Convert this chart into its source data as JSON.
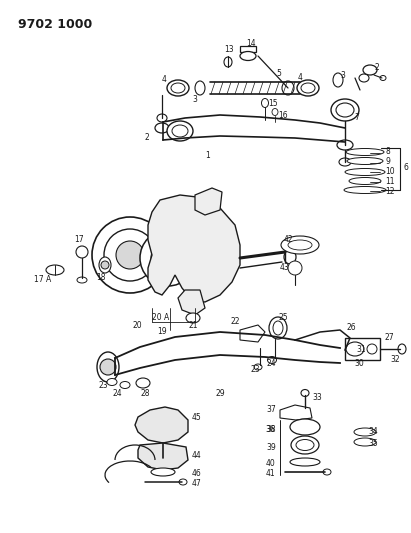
{
  "diagram_id": "9702 1000",
  "bg": "#ffffff",
  "lc": "#1a1a1a",
  "figsize": [
    4.11,
    5.33
  ],
  "dpi": 100,
  "title": "9702 1000"
}
